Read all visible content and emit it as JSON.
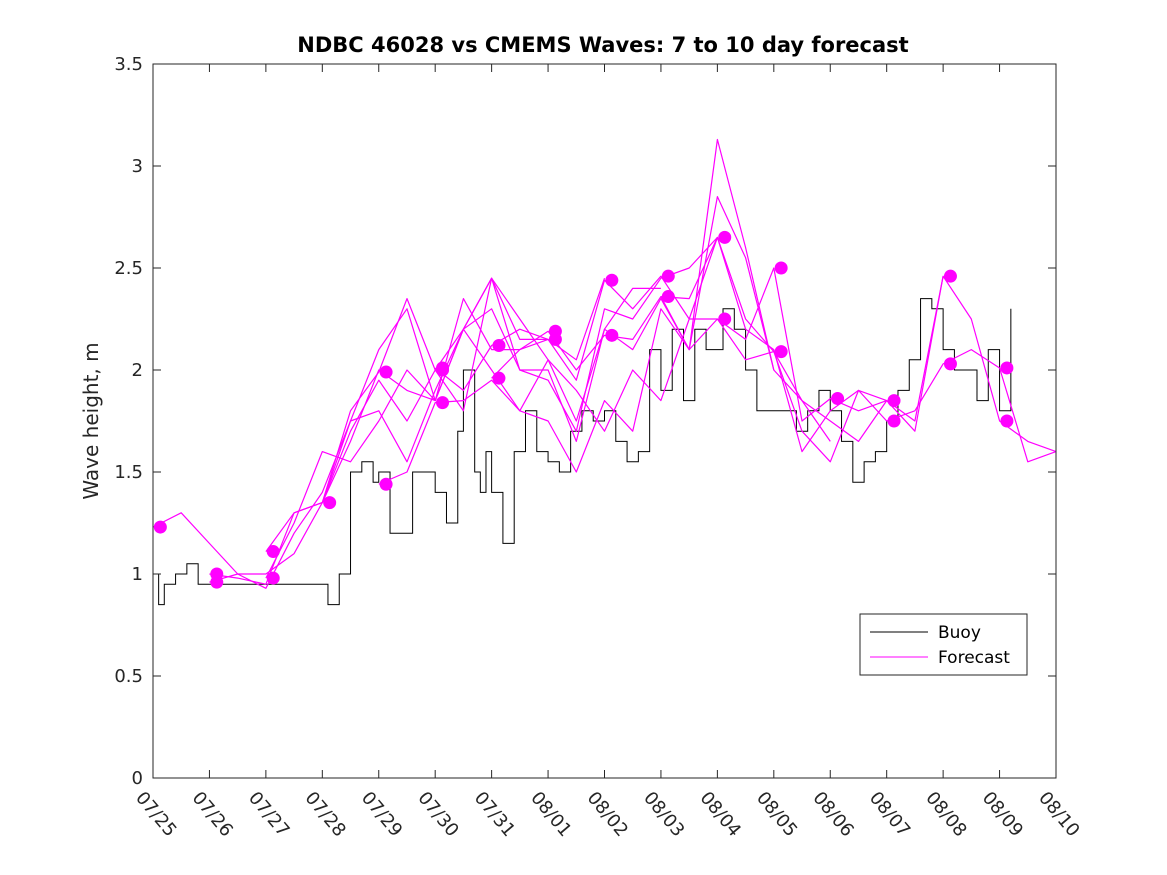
{
  "chart_data": {
    "type": "line",
    "title": "NDBC 46028 vs CMEMS Waves: 7 to 10 day forecast",
    "ylabel": "Wave height, m",
    "xlabel": "",
    "xlim": [
      0,
      16
    ],
    "ylim": [
      0,
      3.5
    ],
    "yticks": [
      0,
      0.5,
      1,
      1.5,
      2,
      2.5,
      3,
      3.5
    ],
    "ytick_labels": [
      "0",
      "0.5",
      "1",
      "1.5",
      "2",
      "2.5",
      "3",
      "3.5"
    ],
    "xtick_labels": [
      "07/25",
      "07/26",
      "07/27",
      "07/28",
      "07/29",
      "07/30",
      "07/31",
      "08/01",
      "08/02",
      "08/03",
      "08/04",
      "08/05",
      "08/06",
      "08/07",
      "08/08",
      "08/09",
      "08/10"
    ],
    "grid": false,
    "legend": {
      "placement": "lower-right",
      "entries": [
        {
          "label": "Buoy",
          "color": "#000000"
        },
        {
          "label": "Forecast",
          "color": "#ff00ff"
        }
      ]
    },
    "x_unit": "days since 07/25",
    "buoy": {
      "name": "Buoy",
      "color": "#000000",
      "x": [
        0.0,
        0.1,
        0.2,
        0.4,
        0.6,
        0.8,
        1.0,
        1.2,
        1.5,
        1.8,
        2.0,
        2.2,
        2.4,
        2.6,
        2.8,
        3.0,
        3.1,
        3.3,
        3.5,
        3.7,
        3.9,
        4.0,
        4.2,
        4.4,
        4.6,
        4.8,
        5.0,
        5.2,
        5.4,
        5.5,
        5.7,
        5.8,
        5.9,
        6.0,
        6.2,
        6.4,
        6.6,
        6.8,
        7.0,
        7.2,
        7.4,
        7.6,
        7.8,
        8.0,
        8.2,
        8.4,
        8.6,
        8.8,
        9.0,
        9.2,
        9.4,
        9.6,
        9.8,
        10.0,
        10.1,
        10.3,
        10.5,
        10.7,
        10.9,
        11.0,
        11.2,
        11.4,
        11.6,
        11.8,
        12.0,
        12.2,
        12.4,
        12.6,
        12.8,
        13.0,
        13.2,
        13.4,
        13.6,
        13.8,
        14.0,
        14.2,
        14.4,
        14.6,
        14.8,
        15.0,
        15.2
      ],
      "values": [
        1.0,
        0.85,
        0.95,
        1.0,
        1.05,
        0.95,
        0.95,
        0.95,
        0.95,
        0.95,
        0.95,
        0.95,
        0.95,
        0.95,
        0.95,
        0.95,
        0.85,
        1.0,
        1.5,
        1.55,
        1.45,
        1.5,
        1.2,
        1.2,
        1.5,
        1.5,
        1.4,
        1.25,
        1.7,
        2.0,
        1.5,
        1.4,
        1.6,
        1.4,
        1.15,
        1.6,
        1.8,
        1.6,
        1.55,
        1.5,
        1.7,
        1.8,
        1.75,
        1.8,
        1.65,
        1.55,
        1.6,
        2.1,
        1.9,
        2.2,
        1.85,
        2.2,
        2.1,
        2.1,
        2.3,
        2.2,
        2.0,
        1.8,
        1.8,
        1.8,
        1.8,
        1.7,
        1.8,
        1.9,
        1.8,
        1.65,
        1.45,
        1.55,
        1.6,
        1.75,
        1.9,
        2.05,
        2.35,
        2.3,
        2.1,
        2.0,
        2.0,
        1.85,
        2.1,
        1.8,
        2.3
      ]
    },
    "forecast_series": [
      {
        "x": [
          0.0,
          0.5,
          1.0,
          1.5,
          2.0,
          2.5,
          3.0,
          3.5,
          4.0,
          4.5,
          5.0,
          5.5,
          6.0,
          6.5,
          7.0
        ],
        "values": [
          1.23,
          1.3,
          1.15,
          1.0,
          1.0,
          1.1,
          1.35,
          1.75,
          2.1,
          2.3,
          1.85,
          2.2,
          2.45,
          2.15,
          2.15
        ]
      },
      {
        "x": [
          1.0,
          1.5,
          2.0,
          2.5,
          3.0,
          3.5,
          4.0,
          4.5,
          5.0,
          5.5,
          6.0,
          6.5,
          7.0,
          7.5,
          8.0
        ],
        "values": [
          1.0,
          0.98,
          0.95,
          1.3,
          1.35,
          1.65,
          2.0,
          1.9,
          1.85,
          2.35,
          2.1,
          2.1,
          2.15,
          2.05,
          2.45
        ]
      },
      {
        "x": [
          1.0,
          1.5,
          2.0,
          2.5,
          3.0,
          3.5,
          4.0,
          4.5,
          5.0,
          5.5,
          6.0,
          6.5,
          7.0,
          7.5,
          8.0,
          8.5,
          9.0
        ],
        "values": [
          0.96,
          1.0,
          0.93,
          1.2,
          1.4,
          1.75,
          1.8,
          1.55,
          1.9,
          2.2,
          2.45,
          2.25,
          2.05,
          1.75,
          2.2,
          2.4,
          2.4
        ]
      },
      {
        "x": [
          2.0,
          2.5,
          3.0,
          3.5,
          4.0,
          4.5,
          5.0,
          5.5,
          6.0,
          6.5,
          7.0,
          7.5,
          8.0,
          8.5,
          9.0,
          9.5,
          10.0
        ],
        "values": [
          1.11,
          1.3,
          1.35,
          1.7,
          1.95,
          1.75,
          2.0,
          1.8,
          2.45,
          2.0,
          1.95,
          1.7,
          2.3,
          2.25,
          2.45,
          2.5,
          2.65
        ]
      },
      {
        "x": [
          2.0,
          2.5,
          3.0,
          3.5,
          4.0,
          4.5,
          5.0,
          5.5,
          6.0,
          6.5,
          7.0,
          7.5,
          8.0,
          8.5,
          9.0,
          9.5,
          10.0,
          10.5,
          11.0
        ],
        "values": [
          0.98,
          1.25,
          1.6,
          1.55,
          1.75,
          2.0,
          1.85,
          2.2,
          2.3,
          2.0,
          2.0,
          1.65,
          2.2,
          2.1,
          2.35,
          2.1,
          3.13,
          2.6,
          2.0
        ]
      },
      {
        "x": [
          3.0,
          3.5,
          4.0,
          4.5,
          5.0,
          5.5,
          6.0,
          6.5,
          7.0,
          7.5,
          8.0,
          8.5,
          9.0,
          9.5,
          10.0,
          10.5,
          11.0,
          11.5,
          12.0
        ],
        "values": [
          1.35,
          1.8,
          1.99,
          2.35,
          2.0,
          2.2,
          2.0,
          1.8,
          1.75,
          1.5,
          1.85,
          1.7,
          2.3,
          2.1,
          2.85,
          2.55,
          2.0,
          1.85,
          1.65
        ]
      },
      {
        "x": [
          4.0,
          4.5,
          5.0,
          5.5,
          6.0,
          6.5,
          7.0,
          7.5,
          8.0,
          8.5,
          9.0,
          9.5,
          10.0,
          10.5,
          11.0,
          11.5,
          12.0,
          12.5,
          13.0
        ],
        "values": [
          1.44,
          1.5,
          1.84,
          1.85,
          1.95,
          1.8,
          2.05,
          1.9,
          1.7,
          2.0,
          1.85,
          2.25,
          2.65,
          2.2,
          2.1,
          1.6,
          1.8,
          1.9,
          1.85
        ]
      },
      {
        "x": [
          5.0,
          5.5,
          6.0,
          6.5,
          7.0,
          7.5,
          8.0,
          8.5,
          9.0,
          9.5,
          10.0,
          10.5,
          11.0,
          11.5,
          12.0,
          12.5,
          13.0,
          13.5,
          14.0
        ],
        "values": [
          2.01,
          1.9,
          2.12,
          2.2,
          2.15,
          1.95,
          2.44,
          2.3,
          2.46,
          2.25,
          2.25,
          2.15,
          2.5,
          1.75,
          1.86,
          1.8,
          1.85,
          1.7,
          2.46
        ]
      },
      {
        "x": [
          6.0,
          6.5,
          7.0,
          7.5,
          8.0,
          8.5,
          9.0,
          9.5,
          10.0,
          10.5,
          11.0,
          11.5,
          12.0,
          12.5,
          13.0,
          13.5,
          14.0,
          14.5,
          15.0,
          15.5,
          16.0
        ],
        "values": [
          1.96,
          2.1,
          2.19,
          2.0,
          2.17,
          2.15,
          2.36,
          2.1,
          2.25,
          2.05,
          2.09,
          1.7,
          1.55,
          1.9,
          1.75,
          1.8,
          2.03,
          2.1,
          2.01,
          1.55,
          1.6
        ]
      },
      {
        "x": [
          9.0,
          9.5,
          10.0,
          10.5,
          11.0,
          11.5,
          12.0,
          12.5,
          13.0,
          13.5,
          14.0,
          14.5,
          15.0,
          15.5,
          16.0
        ],
        "values": [
          2.36,
          2.35,
          2.65,
          2.25,
          2.09,
          1.85,
          1.75,
          1.65,
          1.85,
          1.75,
          2.46,
          2.25,
          1.75,
          1.65,
          1.6
        ]
      }
    ],
    "forecast_markers": {
      "color": "#ff00ff",
      "x": [
        0.13,
        1.13,
        1.13,
        2.13,
        2.13,
        3.13,
        4.13,
        4.13,
        5.13,
        5.13,
        5.13,
        6.13,
        6.13,
        7.13,
        7.13,
        8.13,
        8.13,
        9.13,
        9.13,
        10.13,
        10.13,
        11.13,
        11.13,
        12.13,
        13.13,
        13.13,
        14.13,
        14.13,
        15.13,
        15.13
      ],
      "values": [
        1.23,
        1.0,
        0.96,
        1.11,
        0.98,
        1.35,
        1.99,
        1.44,
        2.01,
        2.0,
        1.84,
        2.12,
        1.96,
        2.19,
        2.15,
        2.44,
        2.17,
        2.46,
        2.36,
        2.65,
        2.25,
        2.5,
        2.09,
        1.86,
        1.85,
        1.75,
        2.46,
        2.03,
        2.01,
        1.75
      ]
    }
  }
}
